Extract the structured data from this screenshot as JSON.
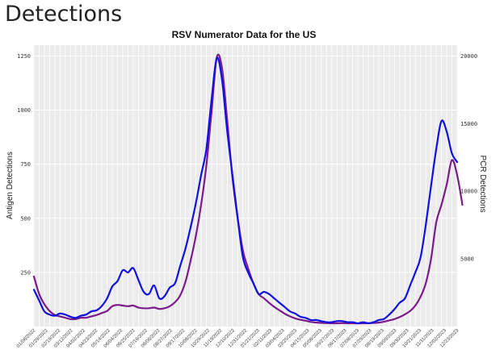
{
  "page": {
    "title": "Detections"
  },
  "chart_data": {
    "type": "line",
    "title": "RSV Numerator Data for the US",
    "ylabel": "Antigen Detections",
    "y2label": "PCR Detections",
    "ylim": [
      0,
      1300
    ],
    "y2lim": [
      0,
      20800
    ],
    "y_ticks": [
      250,
      500,
      750,
      1000,
      1250
    ],
    "y2_ticks": [
      5000,
      10000,
      15000,
      20000
    ],
    "y_tick_labels": [
      "250",
      "500",
      "750",
      "1000",
      "1250"
    ],
    "y2_tick_labels": [
      "5000",
      "10000",
      "15000",
      "20000"
    ],
    "grid": true,
    "colors": {
      "antigen": "#1010e0",
      "pcr": "#7b1a8c",
      "panel_bg": "#ebebeb",
      "grid": "#ffffff"
    },
    "x_tick_labels": [
      "01/08/2022",
      "01/29/2022",
      "02/19/2022",
      "03/12/2022",
      "04/02/2022",
      "04/23/2022",
      "05/14/2022",
      "06/04/2022",
      "06/25/2022",
      "07/16/2022",
      "08/06/2022",
      "08/27/2022",
      "09/17/2022",
      "10/08/2022",
      "10/29/2022",
      "11/19/2022",
      "12/10/2022",
      "12/31/2022",
      "01/21/2023",
      "02/11/2023",
      "03/04/2023",
      "03/25/2023",
      "04/15/2023",
      "05/06/2023",
      "05/27/2023",
      "06/17/2023",
      "07/08/2023",
      "07/29/2023",
      "08/19/2023",
      "09/09/2023",
      "09/30/2023",
      "10/21/2023",
      "11/11/2023",
      "12/02/2023",
      "12/23/2023"
    ],
    "series": [
      {
        "axis": "left",
        "values": [
          170,
          120,
          70,
          55,
          50,
          60,
          55,
          45,
          40,
          50,
          55,
          70,
          75,
          95,
          130,
          185,
          210,
          260,
          250,
          270,
          215,
          160,
          150,
          190,
          130,
          140,
          180,
          200,
          280,
          360,
          460,
          570,
          700,
          820,
          1050,
          1240,
          1140,
          900,
          700,
          500,
          320,
          250,
          200,
          150,
          160,
          150,
          130,
          110,
          90,
          70,
          60,
          45,
          40,
          30,
          30,
          25,
          20,
          20,
          25,
          25,
          20,
          20,
          15,
          20,
          15,
          20,
          30,
          35,
          55,
          80,
          110,
          130,
          190,
          250,
          320,
          470,
          650,
          820,
          950,
          900,
          800,
          760
        ]
      },
      {
        "axis": "right",
        "values": [
          3700,
          2400,
          1650,
          1150,
          850,
          750,
          650,
          550,
          550,
          650,
          650,
          750,
          850,
          1000,
          1150,
          1500,
          1600,
          1550,
          1500,
          1550,
          1400,
          1350,
          1350,
          1400,
          1300,
          1350,
          1500,
          1800,
          2300,
          3300,
          4900,
          6700,
          9000,
          11900,
          15900,
          19900,
          19100,
          15200,
          11000,
          8000,
          5600,
          4300,
          3200,
          2400,
          2100,
          1750,
          1450,
          1200,
          950,
          750,
          600,
          500,
          430,
          340,
          300,
          270,
          250,
          240,
          240,
          250,
          240,
          240,
          230,
          240,
          250,
          260,
          290,
          360,
          450,
          550,
          700,
          900,
          1150,
          1550,
          2200,
          3200,
          5000,
          7700,
          9000,
          10500,
          12300,
          11200,
          9000
        ]
      }
    ]
  }
}
